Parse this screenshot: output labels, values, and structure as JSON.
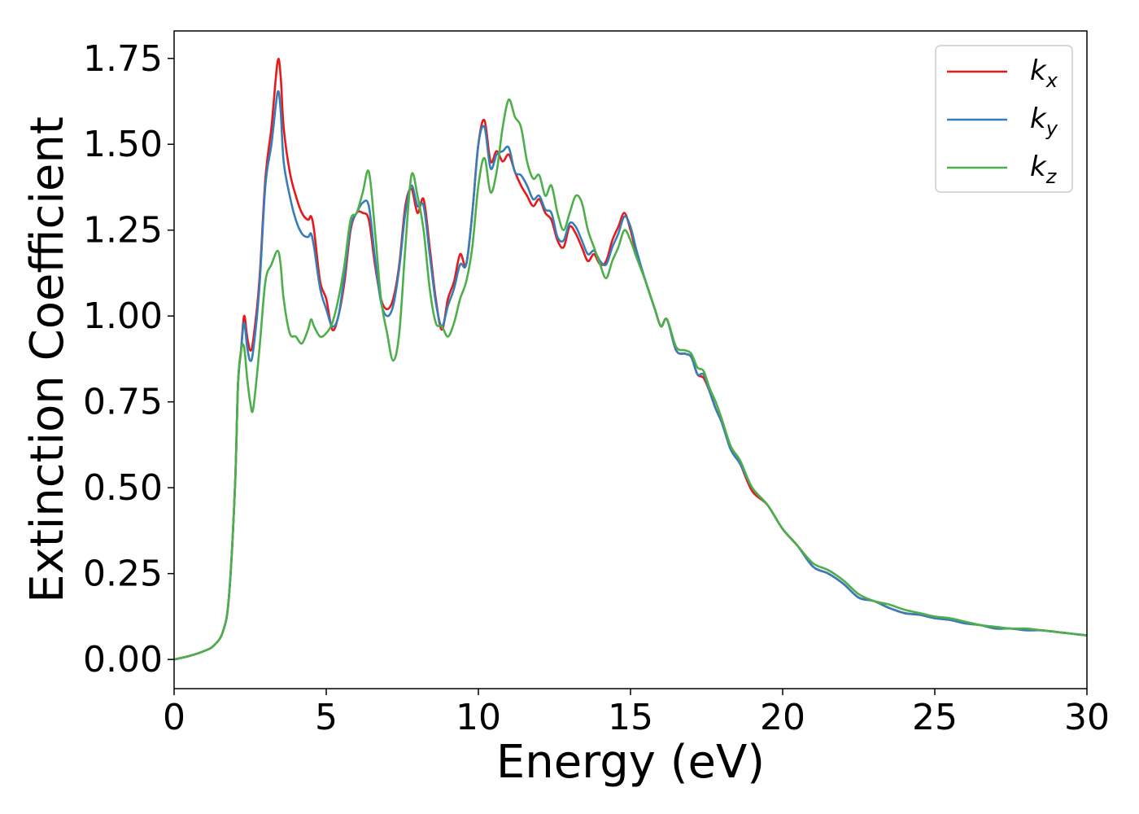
{
  "chart_data": {
    "type": "line",
    "xlabel": "Energy (eV)",
    "ylabel": "Extinction Coefficient",
    "xlim": [
      0,
      30
    ],
    "ylim": [
      -0.085,
      1.83
    ],
    "xticks": [
      0,
      5,
      10,
      15,
      20,
      25,
      30
    ],
    "xtick_labels": [
      "0",
      "5",
      "10",
      "15",
      "20",
      "25",
      "30"
    ],
    "yticks": [
      0,
      0.25,
      0.5,
      0.75,
      1.0,
      1.25,
      1.5,
      1.75
    ],
    "ytick_labels": [
      "0.00",
      "0.25",
      "0.50",
      "0.75",
      "1.00",
      "1.25",
      "1.50",
      "1.75"
    ],
    "grid": false,
    "legend_position": "top-right",
    "series": [
      {
        "name": "k",
        "sub": "x",
        "color": "#e41a1c",
        "x": [
          0,
          0.5,
          1.0,
          1.3,
          1.6,
          1.8,
          2.0,
          2.1,
          2.2,
          2.3,
          2.4,
          2.5,
          2.6,
          2.8,
          3.0,
          3.2,
          3.4,
          3.5,
          3.6,
          3.8,
          4.0,
          4.2,
          4.4,
          4.5,
          4.6,
          4.8,
          5.0,
          5.2,
          5.4,
          5.6,
          5.8,
          6.0,
          6.2,
          6.4,
          6.6,
          6.8,
          7.0,
          7.2,
          7.4,
          7.6,
          7.8,
          8.0,
          8.2,
          8.4,
          8.6,
          8.8,
          9.0,
          9.2,
          9.4,
          9.6,
          9.8,
          10.0,
          10.2,
          10.4,
          10.6,
          10.8,
          11.0,
          11.2,
          11.4,
          11.6,
          11.8,
          12.0,
          12.2,
          12.4,
          12.6,
          12.8,
          13.0,
          13.2,
          13.4,
          13.6,
          13.8,
          14.0,
          14.2,
          14.4,
          14.6,
          14.8,
          15.0,
          15.2,
          15.5,
          15.8,
          16.0,
          16.2,
          16.5,
          16.8,
          17.0,
          17.2,
          17.4,
          17.6,
          17.8,
          18.0,
          18.3,
          18.6,
          19.0,
          19.5,
          20.0,
          20.5,
          21.0,
          21.5,
          22.0,
          22.5,
          23.0,
          23.5,
          24.0,
          24.5,
          25.0,
          25.5,
          26.0,
          26.5,
          27.0,
          27.5,
          28.0,
          28.5,
          29.0,
          29.5,
          30.0
        ],
        "y": [
          0.0,
          0.01,
          0.025,
          0.04,
          0.08,
          0.18,
          0.5,
          0.8,
          0.9,
          1.0,
          0.94,
          0.9,
          0.93,
          1.1,
          1.4,
          1.55,
          1.74,
          1.7,
          1.55,
          1.42,
          1.35,
          1.3,
          1.28,
          1.29,
          1.25,
          1.1,
          1.05,
          0.96,
          1.0,
          1.1,
          1.25,
          1.3,
          1.3,
          1.28,
          1.15,
          1.05,
          1.02,
          1.05,
          1.15,
          1.32,
          1.37,
          1.3,
          1.34,
          1.2,
          1.05,
          0.96,
          1.05,
          1.1,
          1.18,
          1.15,
          1.3,
          1.5,
          1.57,
          1.45,
          1.48,
          1.45,
          1.47,
          1.42,
          1.38,
          1.35,
          1.32,
          1.34,
          1.3,
          1.28,
          1.22,
          1.2,
          1.26,
          1.24,
          1.2,
          1.16,
          1.18,
          1.15,
          1.16,
          1.22,
          1.26,
          1.3,
          1.25,
          1.18,
          1.1,
          1.02,
          0.97,
          0.99,
          0.9,
          0.89,
          0.88,
          0.83,
          0.82,
          0.78,
          0.73,
          0.69,
          0.61,
          0.57,
          0.49,
          0.45,
          0.38,
          0.33,
          0.27,
          0.25,
          0.22,
          0.18,
          0.17,
          0.15,
          0.135,
          0.13,
          0.12,
          0.115,
          0.105,
          0.1,
          0.09,
          0.09,
          0.085,
          0.085,
          0.08,
          0.075,
          0.07
        ]
      },
      {
        "name": "k",
        "sub": "y",
        "color": "#377eb8",
        "x": [
          0,
          0.5,
          1.0,
          1.3,
          1.6,
          1.8,
          2.0,
          2.1,
          2.2,
          2.3,
          2.4,
          2.5,
          2.6,
          2.8,
          3.0,
          3.2,
          3.4,
          3.5,
          3.6,
          3.8,
          4.0,
          4.2,
          4.4,
          4.5,
          4.6,
          4.8,
          5.0,
          5.2,
          5.4,
          5.6,
          5.8,
          6.0,
          6.2,
          6.4,
          6.6,
          6.8,
          7.0,
          7.2,
          7.4,
          7.6,
          7.8,
          8.0,
          8.2,
          8.4,
          8.6,
          8.8,
          9.0,
          9.2,
          9.4,
          9.6,
          9.8,
          10.0,
          10.2,
          10.4,
          10.6,
          10.8,
          11.0,
          11.2,
          11.4,
          11.6,
          11.8,
          12.0,
          12.2,
          12.4,
          12.6,
          12.8,
          13.0,
          13.2,
          13.4,
          13.6,
          13.8,
          14.0,
          14.2,
          14.4,
          14.6,
          14.8,
          15.0,
          15.2,
          15.5,
          15.8,
          16.0,
          16.2,
          16.5,
          16.8,
          17.0,
          17.2,
          17.4,
          17.6,
          17.8,
          18.0,
          18.3,
          18.6,
          19.0,
          19.5,
          20.0,
          20.5,
          21.0,
          21.5,
          22.0,
          22.5,
          23.0,
          23.5,
          24.0,
          24.5,
          25.0,
          25.5,
          26.0,
          26.5,
          27.0,
          27.5,
          28.0,
          28.5,
          29.0,
          29.5,
          30.0
        ],
        "y": [
          0.0,
          0.01,
          0.025,
          0.04,
          0.08,
          0.18,
          0.5,
          0.8,
          0.9,
          0.98,
          0.91,
          0.87,
          0.9,
          1.08,
          1.38,
          1.5,
          1.65,
          1.6,
          1.45,
          1.35,
          1.28,
          1.24,
          1.23,
          1.24,
          1.2,
          1.08,
          1.02,
          0.97,
          1.0,
          1.12,
          1.26,
          1.3,
          1.33,
          1.32,
          1.17,
          1.04,
          1.0,
          1.03,
          1.14,
          1.3,
          1.38,
          1.32,
          1.32,
          1.18,
          1.04,
          0.97,
          1.03,
          1.08,
          1.15,
          1.15,
          1.3,
          1.5,
          1.55,
          1.43,
          1.47,
          1.48,
          1.49,
          1.42,
          1.41,
          1.38,
          1.34,
          1.35,
          1.31,
          1.3,
          1.23,
          1.22,
          1.27,
          1.26,
          1.22,
          1.18,
          1.19,
          1.16,
          1.15,
          1.2,
          1.24,
          1.29,
          1.26,
          1.19,
          1.1,
          1.02,
          0.97,
          0.99,
          0.9,
          0.89,
          0.88,
          0.83,
          0.83,
          0.78,
          0.73,
          0.69,
          0.61,
          0.57,
          0.5,
          0.45,
          0.38,
          0.33,
          0.27,
          0.25,
          0.22,
          0.18,
          0.17,
          0.15,
          0.135,
          0.13,
          0.12,
          0.115,
          0.105,
          0.1,
          0.09,
          0.09,
          0.085,
          0.085,
          0.08,
          0.075,
          0.07
        ]
      },
      {
        "name": "k",
        "sub": "z",
        "color": "#4daf4a",
        "x": [
          0,
          0.5,
          1.0,
          1.3,
          1.6,
          1.8,
          2.0,
          2.1,
          2.2,
          2.3,
          2.4,
          2.5,
          2.6,
          2.8,
          3.0,
          3.2,
          3.4,
          3.5,
          3.6,
          3.8,
          4.0,
          4.2,
          4.4,
          4.5,
          4.6,
          4.8,
          5.0,
          5.2,
          5.4,
          5.6,
          5.8,
          6.0,
          6.2,
          6.4,
          6.6,
          6.8,
          7.0,
          7.2,
          7.4,
          7.6,
          7.8,
          8.0,
          8.2,
          8.4,
          8.6,
          8.8,
          9.0,
          9.2,
          9.4,
          9.6,
          9.8,
          10.0,
          10.2,
          10.4,
          10.6,
          10.8,
          11.0,
          11.2,
          11.4,
          11.6,
          11.8,
          12.0,
          12.2,
          12.4,
          12.6,
          12.8,
          13.0,
          13.2,
          13.4,
          13.6,
          13.8,
          14.0,
          14.2,
          14.4,
          14.6,
          14.8,
          15.0,
          15.2,
          15.5,
          15.8,
          16.0,
          16.2,
          16.5,
          16.8,
          17.0,
          17.2,
          17.4,
          17.6,
          17.8,
          18.0,
          18.3,
          18.6,
          19.0,
          19.5,
          20.0,
          20.5,
          21.0,
          21.5,
          22.0,
          22.5,
          23.0,
          23.5,
          24.0,
          24.5,
          25.0,
          25.5,
          26.0,
          26.5,
          27.0,
          27.5,
          28.0,
          28.5,
          29.0,
          29.5,
          30.0
        ],
        "y": [
          0.0,
          0.01,
          0.025,
          0.04,
          0.08,
          0.18,
          0.5,
          0.8,
          0.9,
          0.91,
          0.82,
          0.75,
          0.73,
          0.9,
          1.1,
          1.15,
          1.19,
          1.15,
          1.05,
          0.95,
          0.94,
          0.92,
          0.96,
          0.99,
          0.97,
          0.94,
          0.95,
          0.98,
          1.05,
          1.15,
          1.28,
          1.3,
          1.36,
          1.42,
          1.25,
          1.05,
          0.95,
          0.87,
          0.95,
          1.2,
          1.41,
          1.35,
          1.25,
          1.08,
          0.98,
          0.97,
          0.94,
          0.98,
          1.05,
          1.1,
          1.2,
          1.38,
          1.46,
          1.36,
          1.42,
          1.55,
          1.63,
          1.58,
          1.55,
          1.45,
          1.4,
          1.41,
          1.35,
          1.38,
          1.3,
          1.25,
          1.3,
          1.35,
          1.33,
          1.25,
          1.2,
          1.15,
          1.11,
          1.16,
          1.2,
          1.25,
          1.22,
          1.17,
          1.1,
          1.02,
          0.97,
          0.99,
          0.91,
          0.9,
          0.89,
          0.85,
          0.84,
          0.79,
          0.75,
          0.7,
          0.62,
          0.58,
          0.5,
          0.45,
          0.38,
          0.33,
          0.28,
          0.26,
          0.23,
          0.19,
          0.17,
          0.16,
          0.145,
          0.135,
          0.125,
          0.12,
          0.11,
          0.1,
          0.095,
          0.09,
          0.09,
          0.085,
          0.08,
          0.075,
          0.07
        ]
      }
    ]
  }
}
